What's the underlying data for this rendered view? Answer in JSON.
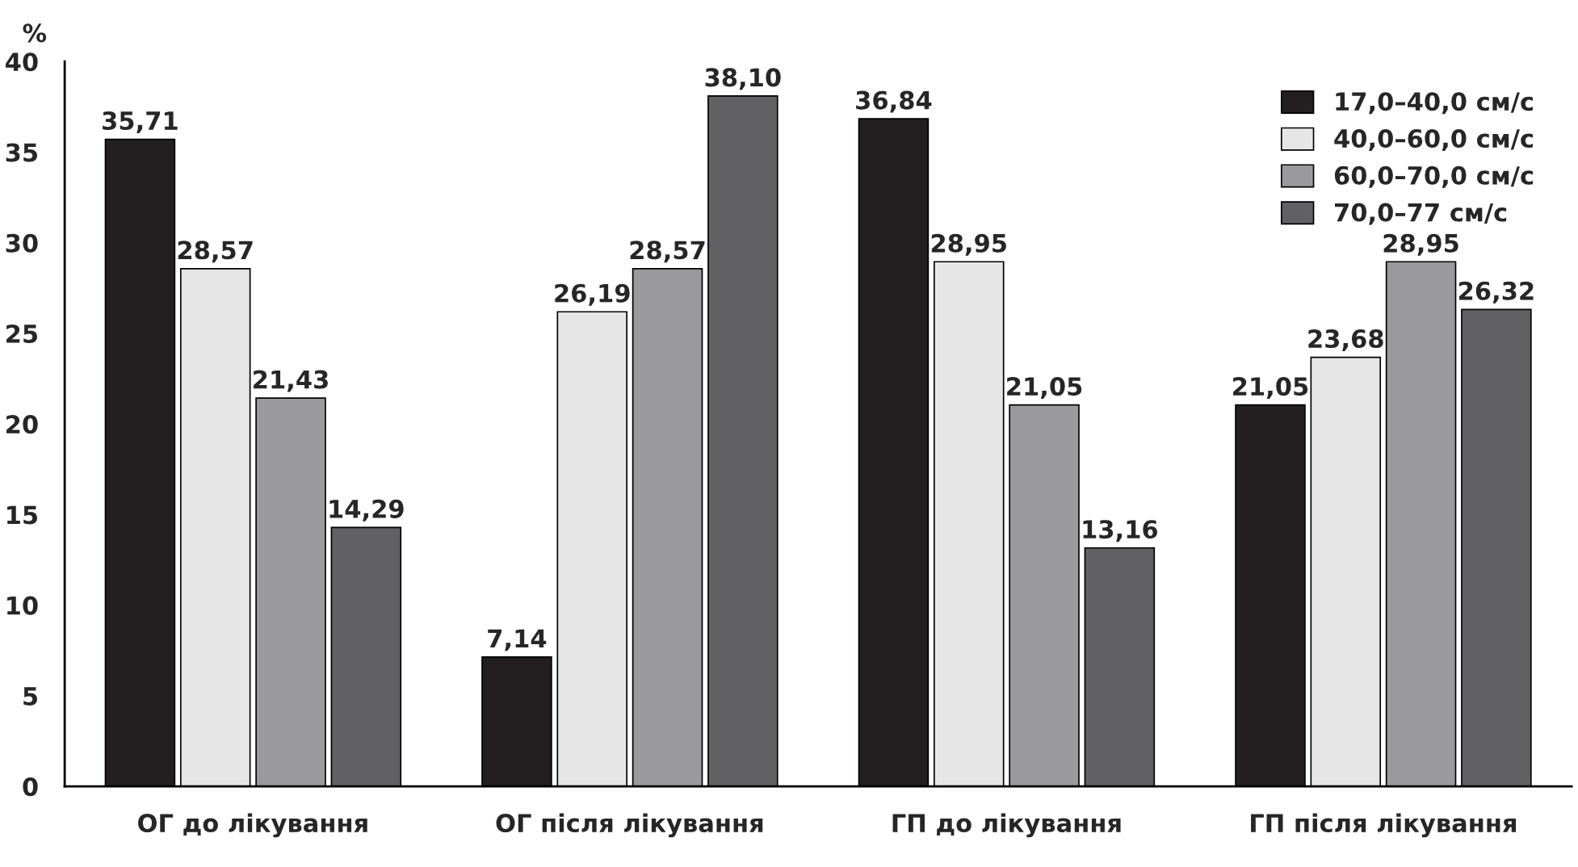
{
  "chart_data": {
    "type": "bar",
    "ylabel": "%",
    "categories": [
      "ОГ до лікування",
      "ОГ після лікування",
      "ГП до лікування",
      "ГП після лікування"
    ],
    "series": [
      {
        "name": "17,0–40,0 см/с",
        "color": "#231f20",
        "values": [
          35.71,
          7.14,
          36.84,
          21.05
        ],
        "value_labels": [
          "35,71",
          "7,14",
          "36,84",
          "21,05"
        ]
      },
      {
        "name": "40,0–60,0 см/с",
        "color": "#e6e6e6",
        "values": [
          28.57,
          26.19,
          28.95,
          23.68
        ],
        "value_labels": [
          "28,57",
          "26,19",
          "28,95",
          "23,68"
        ]
      },
      {
        "name": "60,0–70,0 см/с",
        "color": "#9a9a9c",
        "values": [
          21.43,
          28.57,
          21.05,
          28.95
        ],
        "value_labels": [
          "21,43",
          "28,57",
          "21,05",
          "28,95"
        ]
      },
      {
        "name": "70,0–77 см/с",
        "color": "#616163",
        "values": [
          14.29,
          38.1,
          13.16,
          26.32
        ],
        "value_labels": [
          "14,29",
          "38,10",
          "13,16",
          "26,32"
        ]
      }
    ],
    "ylim": [
      0,
      40
    ],
    "yticks": [
      0,
      5,
      10,
      15,
      20,
      25,
      30,
      35,
      40
    ],
    "grid": false,
    "legend": "top right"
  }
}
